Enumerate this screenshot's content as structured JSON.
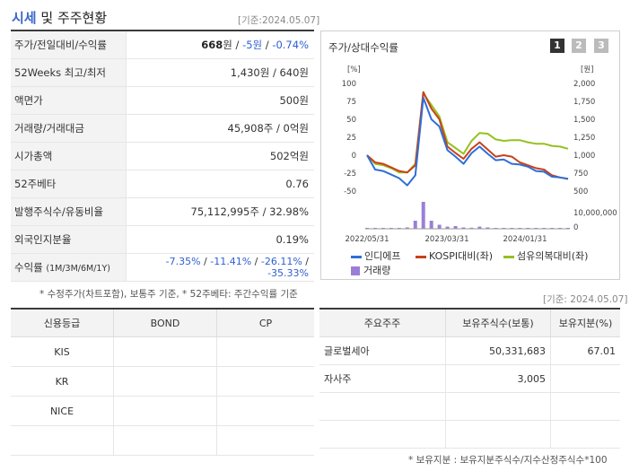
{
  "header": {
    "title_main": "시세",
    "title_rest": " 및 주주현황",
    "base_date": "[기준:2024.05.07]"
  },
  "quote": {
    "price_row": {
      "label": "주가/전일대비/수익률",
      "price": "668",
      "unit": "원",
      "sep1": " / ",
      "change": "-5원",
      "sep2": " / ",
      "rate": "-0.74%"
    },
    "rows": [
      {
        "label": "52Weeks 최고/최저",
        "value": "1,430원 / 640원"
      },
      {
        "label": "액면가",
        "value": "500원"
      },
      {
        "label": "거래량/거래대금",
        "value": "45,908주 / 0억원"
      },
      {
        "label": "시가총액",
        "value": "502억원"
      },
      {
        "label": "52주베타",
        "value": "0.76"
      },
      {
        "label": "발행주식수/유동비율",
        "value": "75,112,995주 / 32.98%"
      },
      {
        "label": "외국인지분율",
        "value": "0.19%"
      }
    ],
    "return_row": {
      "label": "수익률",
      "label_small": "(1M/3M/6M/1Y)",
      "values": [
        "-7.35%",
        "-11.41%",
        "-26.11%",
        "-35.33%"
      ],
      "sep": " / "
    },
    "footnote": "* 수정주가(차트포함), 보통주 기준, * 52주베타: 주간수익률 기준"
  },
  "chart_panel": {
    "title": "주가/상대수익률",
    "period_buttons": [
      "1",
      "2",
      "3"
    ],
    "legend": [
      "인디에프",
      "KOSPI대비(좌)",
      "섬유의복대비(좌)",
      "거래량"
    ]
  },
  "chart_data": {
    "type": "line",
    "left_axis_label": "[%]",
    "right_axis_label": "[원]",
    "left_ticks": [
      "100",
      "75",
      "50",
      "25",
      "0",
      "-25",
      "-50"
    ],
    "right_ticks": [
      "2,000",
      "1,750",
      "1,500",
      "1,250",
      "1,000",
      "750",
      "500"
    ],
    "volume_tick": "10,000,000",
    "volume_zero": "0",
    "x_ticks": [
      "2022/05/31",
      "2023/03/31",
      "2024/01/31"
    ],
    "ylim_left": [
      -50,
      100
    ],
    "series": [
      {
        "name": "인디에프",
        "color": "#2f6fd6",
        "values": [
          0,
          -20,
          -22,
          -27,
          -32,
          -42,
          -28,
          80,
          50,
          40,
          7,
          -2,
          -12,
          3,
          12,
          2,
          -7,
          -6,
          -12,
          -13,
          -16,
          -22,
          -23,
          -30,
          -31,
          -33
        ]
      },
      {
        "name": "KOSPI대비(좌)",
        "color": "#c8411b",
        "values": [
          0,
          -10,
          -12,
          -17,
          -22,
          -24,
          -14,
          88,
          65,
          50,
          12,
          3,
          -5,
          9,
          18,
          8,
          -2,
          0,
          -2,
          -10,
          -14,
          -18,
          -20,
          -28,
          -31,
          -33
        ]
      },
      {
        "name": "섬유의복대비(좌)",
        "color": "#95c11f",
        "values": [
          0,
          -12,
          -14,
          -18,
          -24,
          -24,
          -12,
          86,
          70,
          54,
          18,
          10,
          2,
          20,
          31,
          30,
          22,
          20,
          21,
          21,
          18,
          16,
          16,
          13,
          12,
          9
        ]
      }
    ],
    "volume": {
      "name": "거래량",
      "color": "#9b7fd6",
      "values": [
        0.02,
        0.02,
        0.03,
        0.02,
        0.02,
        0.05,
        0.3,
        1.0,
        0.3,
        0.15,
        0.08,
        0.1,
        0.05,
        0.04,
        0.08,
        0.05,
        0.03,
        0.03,
        0.02,
        0.02,
        0.02,
        0.02,
        0.02,
        0.02,
        0.02,
        0.02
      ]
    }
  },
  "chart_base_date": "[기준: 2024.05.07]",
  "credit": {
    "headers": [
      "신용등급",
      "BOND",
      "CP"
    ],
    "rows": [
      {
        "agency": "KIS",
        "bond": "",
        "cp": ""
      },
      {
        "agency": "KR",
        "bond": "",
        "cp": ""
      },
      {
        "agency": "NICE",
        "bond": "",
        "cp": ""
      },
      {
        "agency": "",
        "bond": "",
        "cp": ""
      }
    ]
  },
  "holders": {
    "headers": [
      "주요주주",
      "보유주식수(보통)",
      "보유지분(%)"
    ],
    "rows": [
      {
        "name": "글로벌세아",
        "shares": "50,331,683",
        "pct": "67.01"
      },
      {
        "name": "자사주",
        "shares": "3,005",
        "pct": ""
      },
      {
        "name": "",
        "shares": "",
        "pct": ""
      },
      {
        "name": "",
        "shares": "",
        "pct": ""
      }
    ],
    "footnote": "* 보유지분 : 보유지분주식수/지수산정주식수*100"
  }
}
